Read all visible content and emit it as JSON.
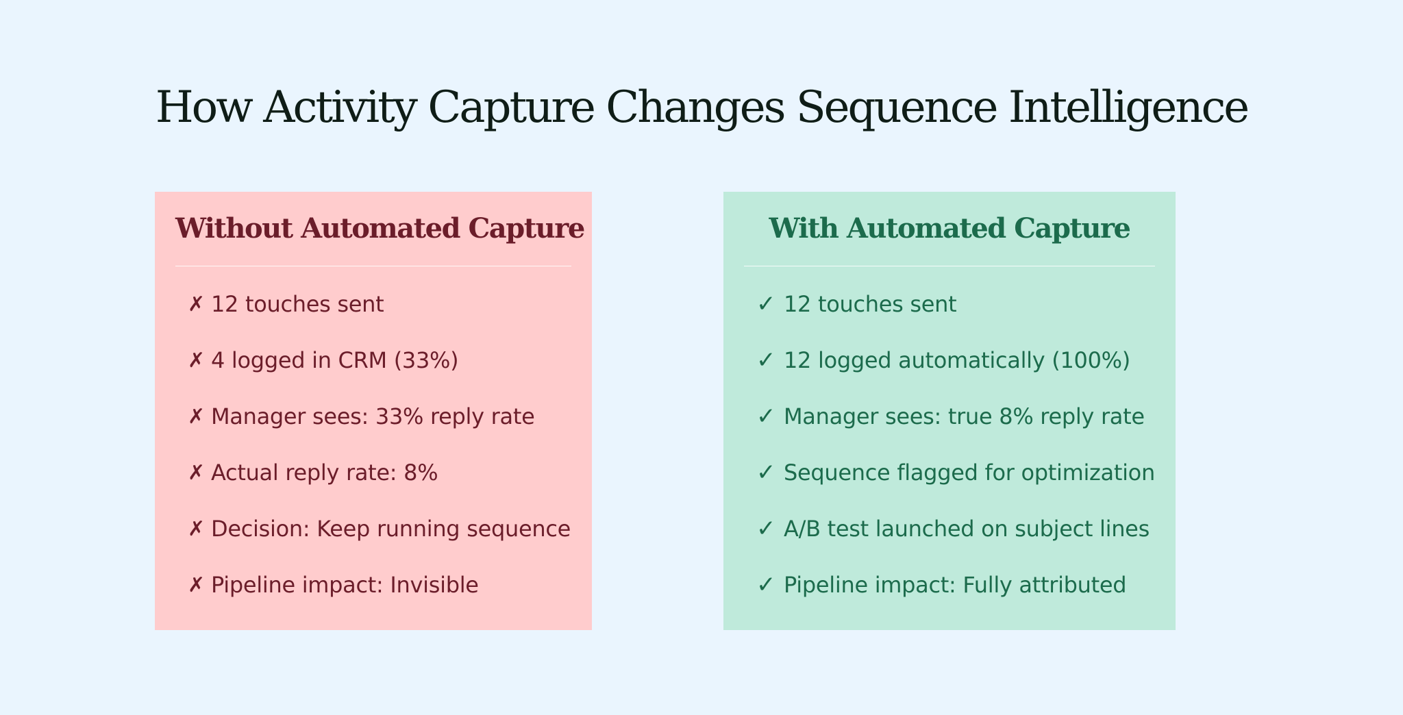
{
  "title": "How Activity Capture Changes Sequence Intelligence",
  "colors": {
    "background": "#eaf5fe",
    "without_card": "#ffcccd",
    "without_text": "#6b1d2a",
    "with_card": "#bfeadb",
    "with_text": "#1c6b4c"
  },
  "without": {
    "heading": "Without Automated Capture",
    "mark": "✗",
    "items": [
      "12 touches sent",
      "4 logged in CRM (33%)",
      "Manager sees: 33% reply rate",
      "Actual reply rate: 8%",
      "Decision: Keep running sequence",
      "Pipeline impact: Invisible"
    ]
  },
  "with": {
    "heading": "With Automated Capture",
    "mark": "✓",
    "items": [
      "12 touches sent",
      "12 logged automatically (100%)",
      "Manager sees: true 8% reply rate",
      "Sequence flagged for optimization",
      "A/B test launched on subject lines",
      "Pipeline impact: Fully attributed"
    ]
  }
}
